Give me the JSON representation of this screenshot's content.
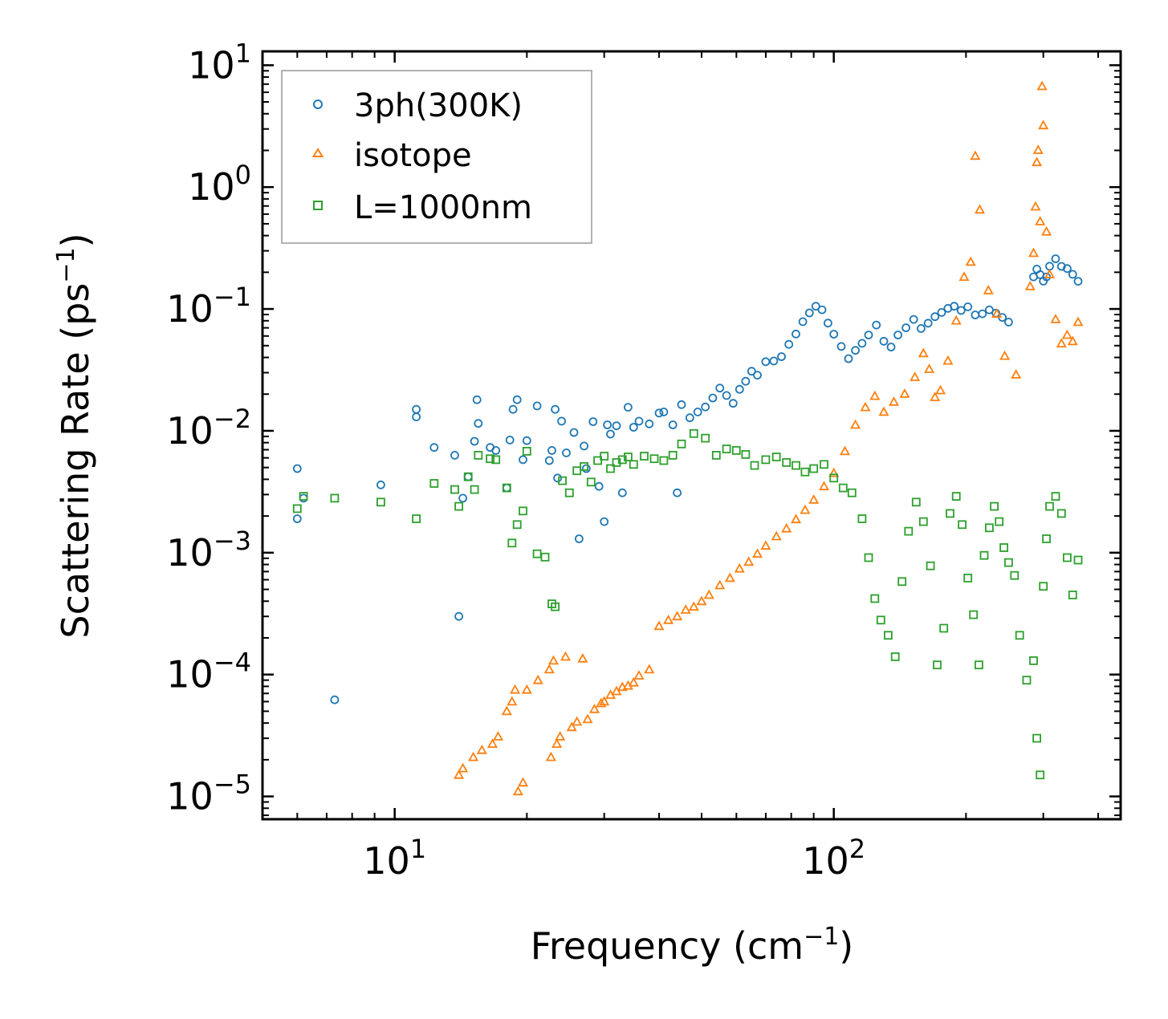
{
  "chart_data": {
    "type": "scatter",
    "xscale": "log",
    "yscale": "log",
    "xlim": [
      5,
      450
    ],
    "ylim": [
      6.5e-06,
      13
    ],
    "grid": false,
    "legend_position": "top-left",
    "title": "",
    "xlabel": "Frequency (cm",
    "xlabel_sup": "−1",
    "xlabel_end": ")",
    "ylabel": "Scattering Rate (ps",
    "ylabel_sup": "−1",
    "ylabel_end": ")",
    "x_ticks": [
      {
        "value": 10,
        "base": "10",
        "exp": "1"
      },
      {
        "value": 100,
        "base": "10",
        "exp": "2"
      }
    ],
    "y_ticks": [
      {
        "value": 10,
        "base": "10",
        "exp": "1"
      },
      {
        "value": 1,
        "base": "10",
        "exp": "0"
      },
      {
        "value": 0.1,
        "base": "10",
        "exp": "−1"
      },
      {
        "value": 0.01,
        "base": "10",
        "exp": "−2"
      },
      {
        "value": 0.001,
        "base": "10",
        "exp": "−3"
      },
      {
        "value": 0.0001,
        "base": "10",
        "exp": "−4"
      },
      {
        "value": 1e-05,
        "base": "10",
        "exp": "−5"
      }
    ],
    "series": [
      {
        "name": "3ph(300K)",
        "marker": "circle",
        "color": "#1f77b4",
        "x": [
          6,
          6,
          6.2,
          7.3,
          9.3,
          11.2,
          11.2,
          12.3,
          13.7,
          14,
          14.3,
          14.7,
          15.2,
          15.4,
          15.5,
          16.5,
          17,
          18,
          18.3,
          18.6,
          19,
          19.6,
          20,
          21.1,
          22.5,
          22.8,
          23.2,
          23.5,
          24,
          24.6,
          25.6,
          26.3,
          27,
          27.3,
          28.3,
          29.2,
          30,
          30.5,
          31,
          32,
          33,
          34,
          35,
          36,
          38,
          40,
          41,
          43,
          44,
          45,
          47,
          49,
          51,
          53,
          55,
          57,
          59,
          61,
          63,
          65,
          67,
          70,
          73,
          76,
          79,
          82,
          85,
          88,
          91,
          94,
          97,
          100,
          104,
          108,
          112,
          116,
          120,
          125,
          130,
          135,
          140,
          146,
          152,
          158,
          164,
          170,
          176,
          182,
          188,
          195,
          202,
          210,
          218,
          226,
          234,
          242,
          250,
          285,
          290,
          295,
          300,
          305,
          310,
          320,
          330,
          340,
          350,
          360
        ],
        "y": [
          0.0049,
          0.0019,
          0.0028,
          6.2e-05,
          0.0036,
          0.015,
          0.013,
          0.0073,
          0.0063,
          0.0003,
          0.0028,
          0.0042,
          0.0082,
          0.018,
          0.0115,
          0.0073,
          0.0069,
          0.0034,
          0.0084,
          0.015,
          0.018,
          0.0058,
          0.0083,
          0.016,
          0.0057,
          0.0069,
          0.015,
          0.0041,
          0.012,
          0.0066,
          0.0097,
          0.0013,
          0.0075,
          0.0049,
          0.0119,
          0.0035,
          0.0018,
          0.0112,
          0.0094,
          0.011,
          0.0031,
          0.0156,
          0.0107,
          0.012,
          0.0114,
          0.014,
          0.0143,
          0.0112,
          0.0031,
          0.0164,
          0.0128,
          0.0143,
          0.0157,
          0.0186,
          0.0224,
          0.0195,
          0.0168,
          0.0219,
          0.0255,
          0.0308,
          0.0286,
          0.0369,
          0.0374,
          0.0406,
          0.0512,
          0.0623,
          0.0787,
          0.0928,
          0.1052,
          0.0984,
          0.0765,
          0.0621,
          0.0492,
          0.0391,
          0.0457,
          0.0522,
          0.0612,
          0.0738,
          0.0543,
          0.0487,
          0.0612,
          0.0701,
          0.0821,
          0.0691,
          0.0764,
          0.0864,
          0.0937,
          0.1012,
          0.1053,
          0.0972,
          0.1042,
          0.0893,
          0.0912,
          0.0983,
          0.0924,
          0.0853,
          0.0781,
          0.1832,
          0.2124,
          0.1912,
          0.1691,
          0.1832,
          0.2243,
          0.2581,
          0.2234,
          0.2146,
          0.1924,
          0.1685
        ]
      },
      {
        "name": "isotope",
        "marker": "triangle",
        "color": "#ff7f0e",
        "x": [
          14,
          14.3,
          15.1,
          15.8,
          16.7,
          17.2,
          18,
          18.5,
          18.8,
          19.1,
          19.6,
          20,
          21.2,
          22.5,
          22.7,
          23,
          23.4,
          23.8,
          24.5,
          25.3,
          26,
          26.8,
          27.5,
          28.5,
          29.5,
          30,
          31,
          32,
          33,
          34,
          35,
          36,
          38,
          40,
          42,
          44,
          46,
          48,
          50,
          52,
          55,
          58,
          61,
          64,
          67,
          70,
          74,
          78,
          82,
          86,
          90,
          95,
          100,
          106,
          112,
          118,
          124,
          130,
          137,
          145,
          153,
          160,
          165,
          170,
          175,
          182,
          190,
          198,
          205,
          210,
          215,
          225,
          235,
          245,
          260,
          280,
          285,
          288,
          290,
          292,
          295,
          298,
          300,
          305,
          310,
          320,
          330,
          340,
          350,
          360
        ],
        "y": [
          1.5e-05,
          1.7e-05,
          2.1e-05,
          2.4e-05,
          2.7e-05,
          3.1e-05,
          5e-05,
          6e-05,
          7.5e-05,
          1.1e-05,
          1.3e-05,
          7.5e-05,
          9e-05,
          0.00011,
          2.1e-05,
          0.00013,
          2.7e-05,
          3.1e-05,
          0.00014,
          3.7e-05,
          4.1e-05,
          0.000135,
          4.3e-05,
          5.2e-05,
          5.8e-05,
          6e-05,
          6.8e-05,
          7.3e-05,
          7.9e-05,
          8.1e-05,
          8.6e-05,
          9.8e-05,
          0.00011,
          0.00025,
          0.00028,
          0.0003,
          0.00034,
          0.00036,
          0.0004,
          0.00045,
          0.00054,
          0.00062,
          0.00074,
          0.00084,
          0.00098,
          0.00114,
          0.00136,
          0.00158,
          0.00188,
          0.00224,
          0.00272,
          0.0035,
          0.0045,
          0.0068,
          0.0112,
          0.0156,
          0.0193,
          0.0143,
          0.0173,
          0.0201,
          0.0276,
          0.0432,
          0.0321,
          0.0189,
          0.0215,
          0.0376,
          0.0802,
          0.1834,
          0.2434,
          1.8021,
          0.6534,
          0.1421,
          0.0912,
          0.0412,
          0.0289,
          0.1534,
          0.2875,
          0.6921,
          1.5987,
          2.0142,
          0.5231,
          6.7214,
          3.2143,
          0.4312,
          0.1923,
          0.0823,
          0.0521,
          0.0612,
          0.0543,
          0.0781
        ]
      },
      {
        "name": "L=1000nm",
        "marker": "square",
        "color": "#2ca02c",
        "x": [
          6,
          6.2,
          7.3,
          9.3,
          11.2,
          12.3,
          13.7,
          14,
          14.7,
          15.2,
          15.5,
          16.5,
          17,
          18,
          18.5,
          19,
          19.6,
          20,
          21.1,
          22,
          22.8,
          23.2,
          24.1,
          25,
          26,
          27,
          28,
          29,
          30,
          31,
          32,
          33,
          34,
          35,
          37,
          39,
          41,
          43,
          45,
          48,
          51,
          54,
          57,
          60,
          63,
          66,
          70,
          74,
          78,
          82,
          86,
          90,
          95,
          100,
          105,
          110,
          116,
          120,
          124,
          128,
          133,
          138,
          143,
          148,
          154,
          160,
          166,
          172,
          178,
          184,
          190,
          196,
          202,
          208,
          214,
          220,
          226,
          232,
          238,
          244,
          250,
          258,
          265,
          275,
          285,
          290,
          295,
          300,
          305,
          310,
          320,
          330,
          340,
          350,
          360
        ],
        "y": [
          0.0023,
          0.0029,
          0.0028,
          0.0026,
          0.0019,
          0.0037,
          0.0033,
          0.0024,
          0.0042,
          0.0033,
          0.0063,
          0.0059,
          0.0058,
          0.0034,
          0.0012,
          0.0017,
          0.0022,
          0.0068,
          0.00098,
          0.00092,
          0.00038,
          0.00036,
          0.0039,
          0.0031,
          0.0047,
          0.0051,
          0.0038,
          0.0057,
          0.0062,
          0.0049,
          0.0055,
          0.0058,
          0.0061,
          0.0053,
          0.0062,
          0.0059,
          0.0057,
          0.0063,
          0.0078,
          0.0095,
          0.0087,
          0.0063,
          0.0071,
          0.0069,
          0.0064,
          0.0052,
          0.0058,
          0.0061,
          0.0055,
          0.0052,
          0.0046,
          0.0049,
          0.0053,
          0.0041,
          0.0034,
          0.0031,
          0.0019,
          0.00091,
          0.00042,
          0.00028,
          0.00021,
          0.00014,
          0.00058,
          0.0015,
          0.0026,
          0.0018,
          0.00078,
          0.00012,
          0.00024,
          0.0021,
          0.0029,
          0.0017,
          0.00062,
          0.00031,
          0.00012,
          0.00095,
          0.0016,
          0.0024,
          0.0018,
          0.0011,
          0.00083,
          0.00065,
          0.00021,
          9e-05,
          0.00013,
          3e-05,
          1.5e-05,
          0.00053,
          0.0013,
          0.0024,
          0.0029,
          0.0021,
          0.00091,
          0.00045,
          0.00087
        ]
      }
    ]
  }
}
